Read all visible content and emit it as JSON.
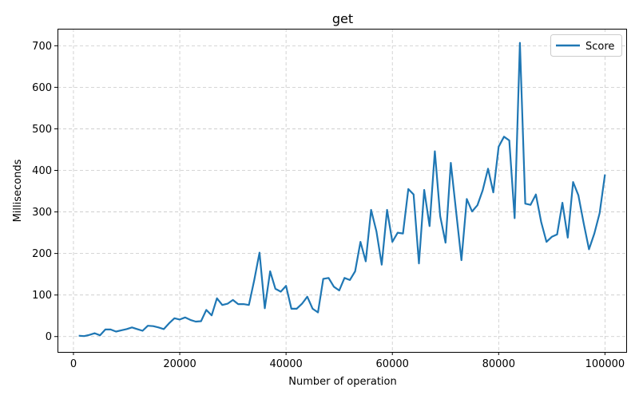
{
  "chart_data": {
    "type": "line",
    "title": "get",
    "xlabel": "Number of operation",
    "ylabel": "Milliseconds",
    "xlim": [
      -3000,
      104000
    ],
    "ylim": [
      -37,
      741
    ],
    "xticks": [
      0,
      20000,
      40000,
      60000,
      80000,
      100000
    ],
    "xtick_labels": [
      "0",
      "20000",
      "40000",
      "60000",
      "80000",
      "100000"
    ],
    "yticks": [
      0,
      100,
      200,
      300,
      400,
      500,
      600,
      700
    ],
    "ytick_labels": [
      "0",
      "100",
      "200",
      "300",
      "400",
      "500",
      "600",
      "700"
    ],
    "grid": true,
    "legend_position": "top-right",
    "series": [
      {
        "name": "Score",
        "color": "#1f77b4",
        "x": [
          1000,
          2000,
          3000,
          4000,
          5000,
          6000,
          7000,
          8000,
          9000,
          10000,
          11000,
          12000,
          13000,
          14000,
          15000,
          16000,
          17000,
          18000,
          19000,
          20000,
          21000,
          22000,
          23000,
          24000,
          25000,
          26000,
          27000,
          28000,
          29000,
          30000,
          31000,
          32000,
          33000,
          34000,
          35000,
          36000,
          37000,
          38000,
          39000,
          40000,
          41000,
          42000,
          43000,
          44000,
          45000,
          46000,
          47000,
          48000,
          49000,
          50000,
          51000,
          52000,
          53000,
          54000,
          55000,
          56000,
          57000,
          58000,
          59000,
          60000,
          61000,
          62000,
          63000,
          64000,
          65000,
          66000,
          67000,
          68000,
          69000,
          70000,
          71000,
          72000,
          73000,
          74000,
          75000,
          76000,
          77000,
          78000,
          79000,
          80000,
          81000,
          82000,
          83000,
          84000,
          85000,
          86000,
          87000,
          88000,
          89000,
          90000,
          91000,
          92000,
          93000,
          94000,
          95000,
          96000,
          97000,
          98000,
          99000,
          100000
        ],
        "values": [
          2,
          1,
          4,
          8,
          3,
          17,
          17,
          12,
          15,
          18,
          22,
          18,
          14,
          26,
          25,
          22,
          18,
          32,
          44,
          41,
          46,
          40,
          36,
          37,
          64,
          51,
          92,
          76,
          79,
          88,
          78,
          78,
          76,
          135,
          202,
          68,
          157,
          115,
          108,
          122,
          67,
          67,
          79,
          96,
          67,
          58,
          139,
          141,
          120,
          111,
          141,
          136,
          157,
          228,
          181,
          305,
          253,
          173,
          305,
          228,
          250,
          248,
          355,
          342,
          176,
          353,
          266,
          446,
          290,
          226,
          418,
          300,
          184,
          331,
          301,
          316,
          352,
          404,
          347,
          457,
          481,
          472,
          285,
          707,
          320,
          317,
          342,
          276,
          228,
          240,
          246,
          322,
          238,
          372,
          340,
          272,
          210,
          248,
          297,
          390
        ]
      }
    ]
  }
}
